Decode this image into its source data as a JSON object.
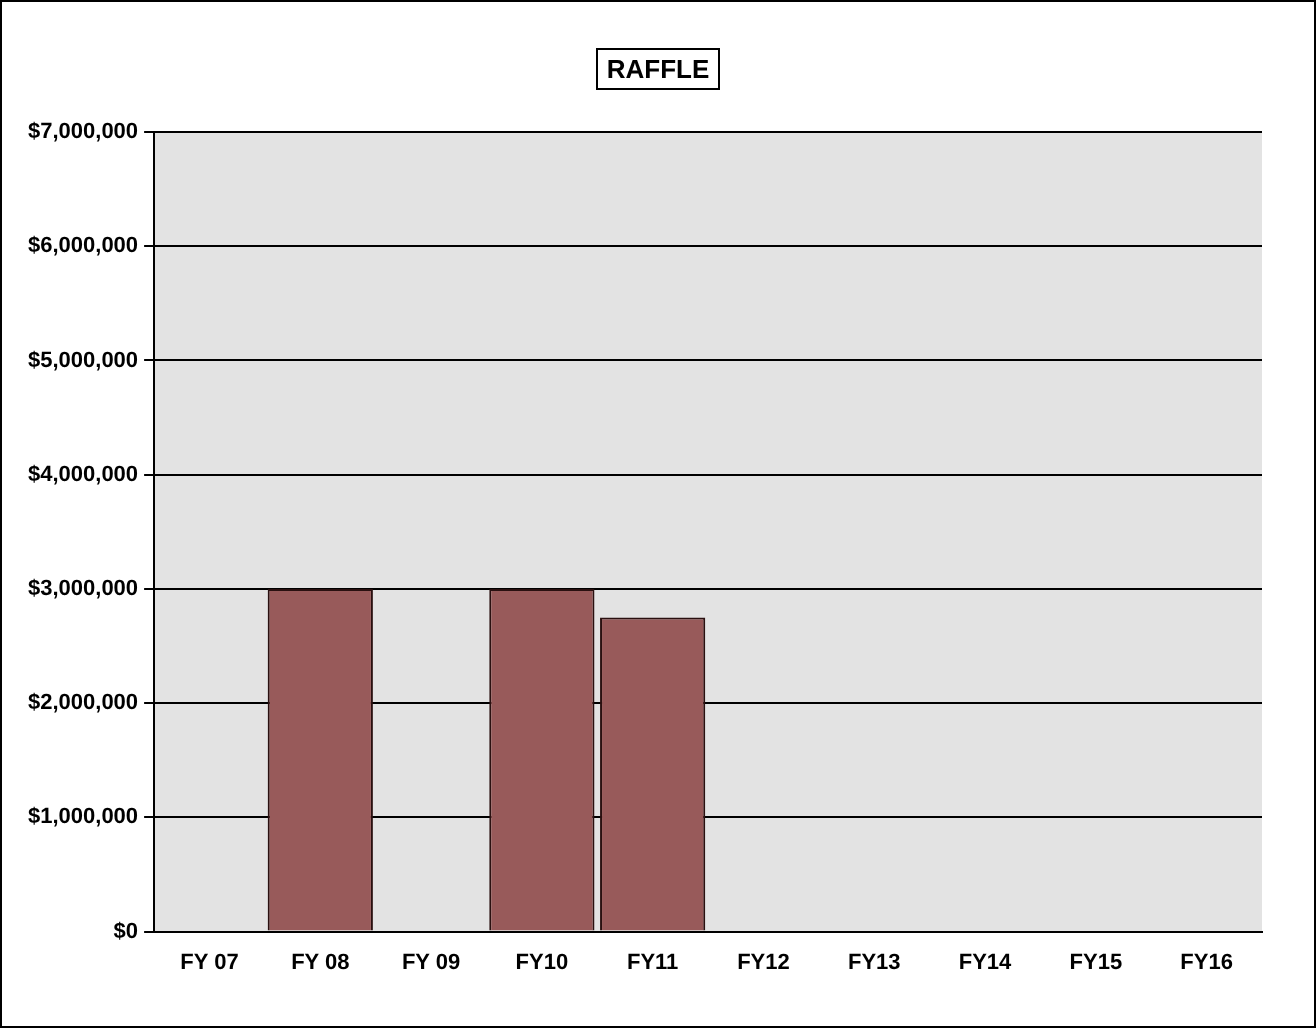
{
  "chart_data": {
    "type": "bar",
    "title": "RAFFLE",
    "categories": [
      "FY 07",
      "FY 08",
      "FY 09",
      "FY10",
      "FY11",
      "FY12",
      "FY13",
      "FY14",
      "FY15",
      "FY16"
    ],
    "values": [
      null,
      3000000,
      null,
      3000000,
      2750000,
      null,
      null,
      null,
      null,
      null
    ],
    "color": "#985a5a",
    "ylim": [
      0,
      7000000
    ],
    "yticks": [
      {
        "value": 0,
        "label": "$0"
      },
      {
        "value": 1000000,
        "label": "$1,000,000"
      },
      {
        "value": 2000000,
        "label": "$2,000,000"
      },
      {
        "value": 3000000,
        "label": "$3,000,000"
      },
      {
        "value": 4000000,
        "label": "$4,000,000"
      },
      {
        "value": 5000000,
        "label": "$5,000,000"
      },
      {
        "value": 6000000,
        "label": "$6,000,000"
      },
      {
        "value": 7000000,
        "label": "$7,000,000"
      }
    ],
    "grid": "y",
    "legend": false
  }
}
